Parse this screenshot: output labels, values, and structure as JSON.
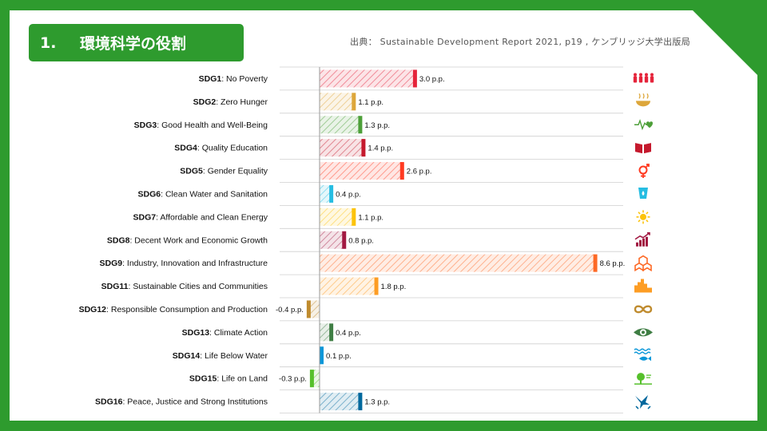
{
  "header": {
    "number": "1.",
    "title": "環境科学の役割",
    "source": "出典： Sustainable Development Report 2021, p19 , ケンブリッジ大学出版局"
  },
  "colors": {
    "frame": "#2e9b2e"
  },
  "chart_data": {
    "type": "bar",
    "orientation": "horizontal",
    "unit": "p.p.",
    "categories": [
      {
        "code": "SDG1",
        "name": "No Poverty",
        "value": 3.0,
        "label": "3.0 p.p.",
        "color": "#e5243b",
        "icon": "people-icon"
      },
      {
        "code": "SDG2",
        "name": "Zero Hunger",
        "value": 1.1,
        "label": "1.1 p.p.",
        "color": "#dda63a",
        "icon": "bowl-icon"
      },
      {
        "code": "SDG3",
        "name": "Good Health and Well-Being",
        "value": 1.3,
        "label": "1.3 p.p.",
        "color": "#4c9f38",
        "icon": "heartbeat-icon"
      },
      {
        "code": "SDG4",
        "name": "Quality Education",
        "value": 1.4,
        "label": "1.4 p.p.",
        "color": "#c5192d",
        "icon": "book-icon"
      },
      {
        "code": "SDG5",
        "name": "Gender Equality",
        "value": 2.6,
        "label": "2.6 p.p.",
        "color": "#ff3a21",
        "icon": "gender-icon"
      },
      {
        "code": "SDG6",
        "name": "Clean Water and Sanitation",
        "value": 0.4,
        "label": "0.4 p.p.",
        "color": "#26bde2",
        "icon": "water-icon"
      },
      {
        "code": "SDG7",
        "name": "Affordable and Clean Energy",
        "value": 1.1,
        "label": "1.1 p.p.",
        "color": "#fcc30b",
        "icon": "sun-icon"
      },
      {
        "code": "SDG8",
        "name": "Decent Work and Economic Growth",
        "value": 0.8,
        "label": "0.8 p.p.",
        "color": "#a21942",
        "icon": "growth-chart-icon"
      },
      {
        "code": "SDG9",
        "name": "Industry, Innovation and Infrastructure",
        "value": 8.6,
        "label": "8.6 p.p.",
        "color": "#fd6925",
        "icon": "cubes-icon"
      },
      {
        "code": "SDG11",
        "name": "Sustainable Cities and Communities",
        "value": 1.8,
        "label": "1.8 p.p.",
        "color": "#fd9d24",
        "icon": "city-icon"
      },
      {
        "code": "SDG12",
        "name": "Responsible Consumption and Production",
        "value": -0.4,
        "label": "-0.4 p.p.",
        "color": "#bf8b2e",
        "icon": "infinity-icon"
      },
      {
        "code": "SDG13",
        "name": "Climate Action",
        "value": 0.4,
        "label": "0.4 p.p.",
        "color": "#3f7e44",
        "icon": "eye-globe-icon"
      },
      {
        "code": "SDG14",
        "name": "Life Below Water",
        "value": 0.1,
        "label": "0.1 p.p.",
        "color": "#0a97d9",
        "icon": "fish-icon"
      },
      {
        "code": "SDG15",
        "name": "Life on Land",
        "value": -0.3,
        "label": "-0.3 p.p.",
        "color": "#56c02b",
        "icon": "tree-icon"
      },
      {
        "code": "SDG16",
        "name": "Peace, Justice and Strong Institutions",
        "value": 1.3,
        "label": "1.3 p.p.",
        "color": "#00689d",
        "icon": "dove-icon"
      }
    ],
    "xlim": [
      -1.2,
      9.4
    ]
  }
}
